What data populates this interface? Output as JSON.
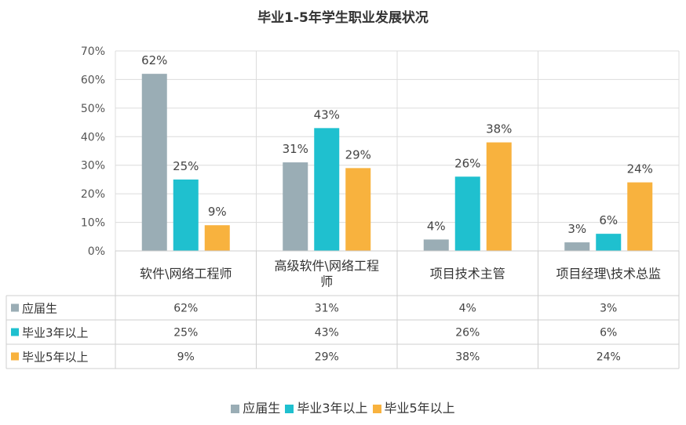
{
  "title": "毕业1-5年学生职业发展状况",
  "chart_data": {
    "type": "bar",
    "title": "毕业1-5年学生职业发展状况",
    "categories": [
      "软件\\网络工程师",
      "高级软件\\网络工程师",
      "项目技术主管",
      "项目经理\\技术总监"
    ],
    "series": [
      {
        "name": "应届生",
        "values": [
          62,
          31,
          4,
          3
        ],
        "color": "#9aadb5"
      },
      {
        "name": "毕业3年以上",
        "values": [
          25,
          43,
          26,
          6
        ],
        "color": "#1fc0cf"
      },
      {
        "name": "毕业5年以上",
        "values": [
          9,
          29,
          38,
          24
        ],
        "color": "#f8b23e"
      }
    ],
    "yticks": [
      "0%",
      "10%",
      "20%",
      "30%",
      "40%",
      "50%",
      "60%",
      "70%"
    ],
    "ylim": [
      0,
      70
    ],
    "value_suffix": "%",
    "grid": true,
    "data_table": true,
    "legend_position": "bottom"
  }
}
